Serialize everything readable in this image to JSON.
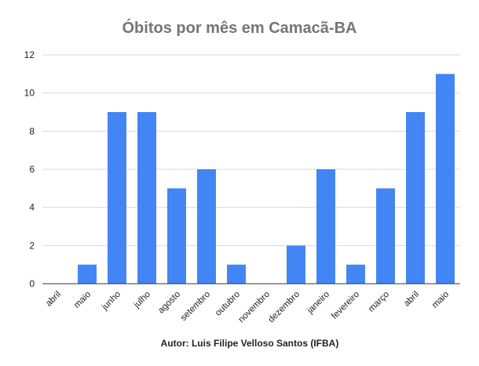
{
  "chart_data": {
    "type": "bar",
    "title": "Óbitos por mês em Camacã-BA",
    "xlabel": "Autor: Luis Filipe Velloso Santos (IFBA)",
    "ylabel": "",
    "categories": [
      "abril",
      "maio",
      "junho",
      "julho",
      "agosto",
      "setembro",
      "outubro",
      "novembro",
      "dezembro",
      "janeiro",
      "fevereiro",
      "março",
      "abril",
      "maio"
    ],
    "values": [
      0,
      1,
      9,
      9,
      5,
      6,
      1,
      0,
      2,
      6,
      1,
      5,
      9,
      11
    ],
    "ylim": [
      0,
      12
    ],
    "yticks": [
      "0",
      "2",
      "4",
      "6",
      "8",
      "10",
      "12"
    ],
    "grid": true,
    "legend": "none",
    "bar_color": "#4285f4"
  }
}
